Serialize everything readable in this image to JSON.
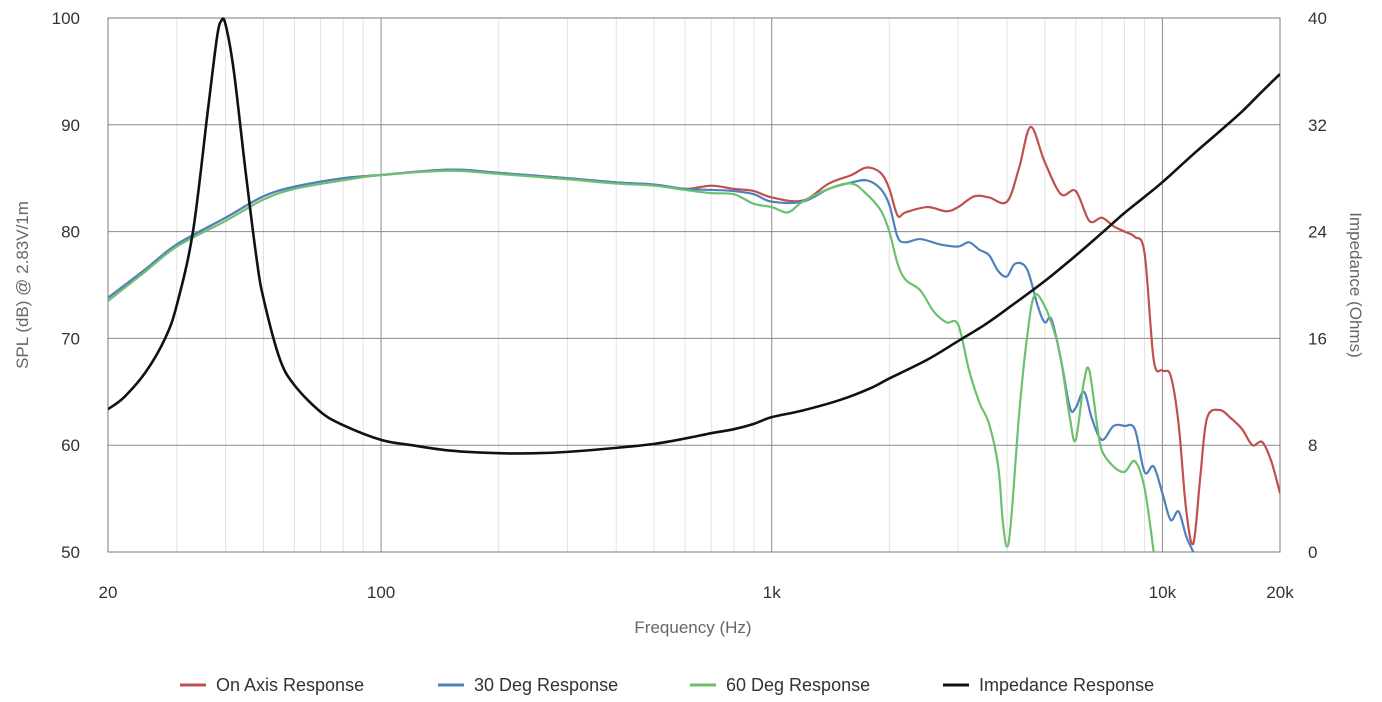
{
  "chart_data": {
    "type": "line",
    "title": "",
    "xlabel": "Frequency (Hz)",
    "ylabel": "SPL (dB) @ 2.83V/1m",
    "y2label": "Impedance (Ohms)",
    "x_scale": "log",
    "xlim": [
      20,
      20000
    ],
    "ylim": [
      50,
      100
    ],
    "y2lim": [
      0,
      40
    ],
    "grid": true,
    "legend_position": "bottom",
    "x_ticks": [
      {
        "value": 20,
        "label": "20"
      },
      {
        "value": 100,
        "label": "100"
      },
      {
        "value": 1000,
        "label": "1k"
      },
      {
        "value": 10000,
        "label": "10k"
      },
      {
        "value": 20000,
        "label": "20k"
      }
    ],
    "y_ticks": [
      {
        "value": 50,
        "label": "50"
      },
      {
        "value": 60,
        "label": "60"
      },
      {
        "value": 70,
        "label": "70"
      },
      {
        "value": 80,
        "label": "80"
      },
      {
        "value": 90,
        "label": "90"
      },
      {
        "value": 100,
        "label": "100"
      }
    ],
    "y2_ticks": [
      {
        "value": 0,
        "label": "0"
      },
      {
        "value": 8,
        "label": "8"
      },
      {
        "value": 16,
        "label": "16"
      },
      {
        "value": 24,
        "label": "24"
      },
      {
        "value": 32,
        "label": "32"
      },
      {
        "value": 40,
        "label": "40"
      }
    ],
    "series": [
      {
        "name": "On Axis Response",
        "color": "#c0504d",
        "axis": "left",
        "x": [
          20,
          25,
          30,
          40,
          50,
          60,
          80,
          100,
          150,
          200,
          300,
          400,
          500,
          600,
          700,
          800,
          900,
          1000,
          1200,
          1400,
          1600,
          1750,
          1900,
          2000,
          2100,
          2200,
          2500,
          2800,
          3000,
          3300,
          3600,
          4000,
          4300,
          4600,
          5000,
          5500,
          6000,
          6500,
          7000,
          7500,
          8000,
          8500,
          9000,
          9500,
          10000,
          10500,
          11000,
          11500,
          12000,
          12500,
          13000,
          14000,
          15000,
          16000,
          17000,
          18000,
          19000,
          20000
        ],
        "y": [
          73.8,
          76.5,
          78.8,
          81.3,
          83.3,
          84.2,
          85.0,
          85.3,
          85.8,
          85.5,
          85.0,
          84.6,
          84.4,
          84.0,
          84.3,
          84.0,
          83.8,
          83.2,
          82.9,
          84.5,
          85.3,
          86.0,
          85.5,
          84.0,
          81.5,
          81.8,
          82.3,
          81.9,
          82.3,
          83.3,
          83.2,
          82.8,
          86.0,
          89.8,
          86.5,
          83.5,
          83.8,
          81.0,
          81.3,
          80.5,
          80.0,
          79.5,
          78.0,
          68.0,
          67.0,
          66.5,
          62.0,
          54.0,
          50.8,
          57.0,
          62.5,
          63.3,
          62.5,
          61.5,
          60.0,
          60.3,
          58.5,
          55.5
        ]
      },
      {
        "name": "30 Deg Response",
        "color": "#4f81bd",
        "axis": "left",
        "x": [
          20,
          25,
          30,
          40,
          50,
          60,
          80,
          100,
          150,
          200,
          300,
          400,
          500,
          600,
          700,
          800,
          900,
          1000,
          1200,
          1400,
          1600,
          1750,
          1900,
          2000,
          2100,
          2200,
          2400,
          2700,
          3000,
          3200,
          3400,
          3600,
          3800,
          4000,
          4200,
          4500,
          4800,
          5000,
          5200,
          5500,
          5800,
          6000,
          6300,
          6600,
          7000,
          7500,
          8000,
          8500,
          9000,
          9500,
          10000,
          10500,
          11000,
          11500,
          12000
        ],
        "y": [
          73.8,
          76.5,
          78.8,
          81.3,
          83.3,
          84.2,
          85.0,
          85.3,
          85.8,
          85.5,
          85.0,
          84.6,
          84.4,
          84.0,
          83.9,
          83.8,
          83.5,
          82.8,
          82.8,
          84.0,
          84.6,
          84.8,
          84.0,
          82.5,
          79.5,
          79.0,
          79.3,
          78.8,
          78.6,
          79.0,
          78.3,
          77.8,
          76.3,
          75.8,
          77.0,
          76.5,
          73.0,
          71.5,
          71.8,
          68.0,
          63.5,
          63.5,
          65.0,
          62.5,
          60.5,
          61.8,
          61.8,
          61.5,
          57.5,
          58.0,
          55.5,
          53.0,
          53.8,
          51.5,
          50.0
        ]
      },
      {
        "name": "60 Deg Response",
        "color": "#6cc070",
        "axis": "left",
        "x": [
          20,
          25,
          30,
          40,
          50,
          60,
          80,
          100,
          150,
          200,
          300,
          400,
          500,
          600,
          700,
          800,
          900,
          1000,
          1100,
          1200,
          1400,
          1600,
          1750,
          1900,
          2000,
          2100,
          2200,
          2400,
          2600,
          2800,
          3000,
          3200,
          3400,
          3600,
          3800,
          3900,
          4000,
          4100,
          4300,
          4500,
          4700,
          5000,
          5300,
          5500,
          5800,
          6000,
          6300,
          6500,
          6800,
          7000,
          7500,
          8000,
          8500,
          9000,
          9500
        ],
        "y": [
          73.5,
          76.3,
          78.6,
          81.0,
          83.0,
          84.0,
          84.8,
          85.3,
          85.7,
          85.4,
          84.9,
          84.5,
          84.3,
          83.9,
          83.6,
          83.5,
          82.6,
          82.3,
          81.8,
          82.8,
          84.0,
          84.5,
          83.5,
          82.0,
          80.0,
          77.0,
          75.5,
          74.5,
          72.5,
          71.5,
          71.3,
          67.0,
          64.0,
          62.0,
          58.0,
          53.0,
          50.5,
          53.0,
          63.0,
          70.0,
          74.0,
          73.0,
          70.5,
          68.0,
          62.5,
          60.5,
          66.0,
          67.0,
          62.0,
          59.5,
          58.0,
          57.5,
          58.5,
          56.0,
          50.0
        ]
      },
      {
        "name": "Impedance Response",
        "color": "#111111",
        "axis": "right",
        "x": [
          20,
          22,
          25,
          28,
          30,
          33,
          36,
          38,
          39,
          40,
          42,
          45,
          48,
          50,
          55,
          60,
          70,
          80,
          100,
          120,
          150,
          200,
          250,
          300,
          400,
          500,
          600,
          700,
          800,
          900,
          1000,
          1200,
          1500,
          1800,
          2000,
          2500,
          3000,
          3500,
          4000,
          5000,
          6000,
          7000,
          8000,
          9000,
          10000,
          12000,
          14000,
          16000,
          18000,
          20000
        ],
        "y": [
          10.7,
          11.6,
          13.5,
          16.0,
          18.5,
          24.0,
          33.0,
          38.5,
          39.8,
          39.5,
          36.0,
          28.5,
          22.0,
          19.0,
          14.5,
          12.5,
          10.5,
          9.5,
          8.4,
          8.0,
          7.6,
          7.4,
          7.4,
          7.5,
          7.8,
          8.1,
          8.5,
          8.9,
          9.2,
          9.6,
          10.1,
          10.6,
          11.4,
          12.3,
          13.0,
          14.4,
          15.8,
          17.0,
          18.2,
          20.3,
          22.2,
          23.9,
          25.4,
          26.6,
          27.7,
          29.8,
          31.5,
          33.0,
          34.5,
          35.8
        ]
      }
    ]
  }
}
